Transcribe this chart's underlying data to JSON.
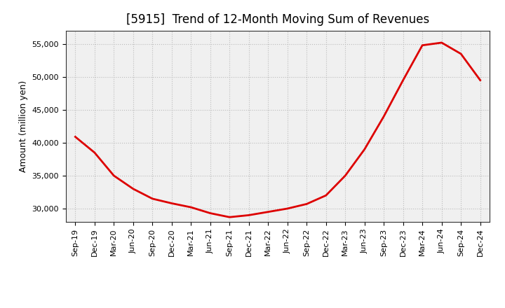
{
  "title": "[5915]  Trend of 12-Month Moving Sum of Revenues",
  "ylabel": "Amount (million yen)",
  "background_color": "#ffffff",
  "plot_bg_color": "#f0f0f0",
  "grid_color": "#bbbbbb",
  "line_color": "#dd0000",
  "line_width": 2.0,
  "x_labels": [
    "Sep-19",
    "Dec-19",
    "Mar-20",
    "Jun-20",
    "Sep-20",
    "Dec-20",
    "Mar-21",
    "Jun-21",
    "Sep-21",
    "Dec-21",
    "Mar-22",
    "Jun-22",
    "Sep-22",
    "Dec-22",
    "Mar-23",
    "Jun-23",
    "Sep-23",
    "Dec-23",
    "Mar-24",
    "Jun-24",
    "Sep-24",
    "Dec-24"
  ],
  "y_values": [
    40900,
    38500,
    35000,
    33000,
    31500,
    30800,
    30200,
    29300,
    28700,
    29000,
    29500,
    30000,
    30700,
    32000,
    35000,
    39000,
    44000,
    49500,
    54800,
    55200,
    53500,
    49500
  ],
  "ylim": [
    28000,
    57000
  ],
  "yticks": [
    30000,
    35000,
    40000,
    45000,
    50000,
    55000
  ],
  "title_fontsize": 12,
  "tick_fontsize": 8,
  "ylabel_fontsize": 9
}
